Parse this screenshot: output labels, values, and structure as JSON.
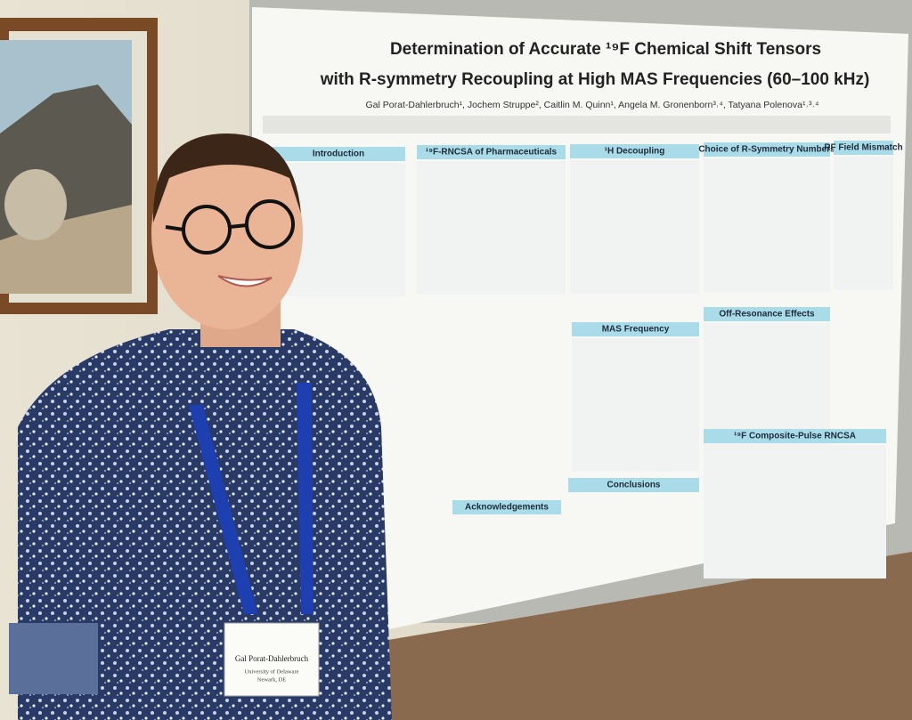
{
  "poster": {
    "title": [
      "Determination of Accurate ¹⁹F Chemical Shift Tensors",
      "with R-symmetry Recoupling at High MAS Frequencies (60–100 kHz)"
    ],
    "authors": "Gal Porat-Dahlerbruch¹, Jochem Struppe², Caitlin M. Quinn¹, Angela M. Gronenborn³˒⁴, Tatyana Polenova¹˒³˒⁴",
    "sections": [
      "Introduction",
      "¹⁹F-RNCSA of Pharmaceuticals",
      "¹H Decoupling",
      "Choice of R-Symmetry Numbers",
      "RF Field Mismatch",
      "MAS Frequency",
      "Off-Resonance Effects",
      "¹⁹F Composite-Pulse RNCSA",
      "Acknowledgements",
      "Conclusions"
    ]
  },
  "badge": {
    "name": "Gal Porat-Dahlerbruch",
    "affiliation": [
      "University of Delaware",
      "Newark, DE"
    ]
  }
}
